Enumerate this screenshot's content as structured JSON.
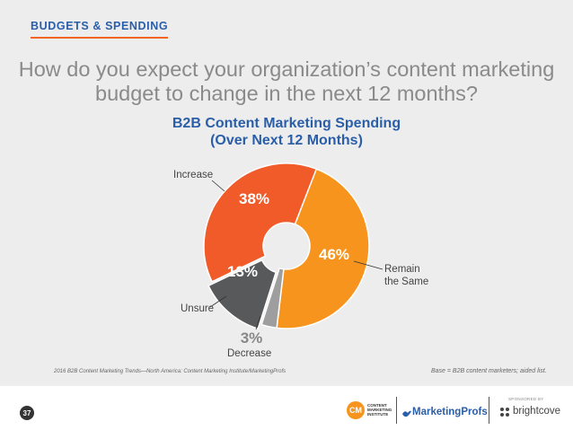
{
  "header": {
    "section_label": "BUDGETS & SPENDING",
    "question": "How do you expect your organization’s content marketing budget to change in the next 12 months?"
  },
  "chart_data": {
    "type": "pie",
    "title": "B2B Content Marketing Spending",
    "subtitle": "(Over Next 12 Months)",
    "donut": true,
    "categories": [
      "Increase",
      "Remain the Same",
      "Decrease",
      "Unsure"
    ],
    "values": [
      38,
      46,
      3,
      13
    ],
    "value_labels": [
      "38%",
      "46%",
      "3%",
      "13%"
    ],
    "category_labels": [
      "Increase",
      "Remain\nthe Same",
      "Decrease",
      "Unsure"
    ],
    "colors": [
      "#f15a29",
      "#f7941d",
      "#9e9e9e",
      "#58595b"
    ],
    "exploded": "Unsure"
  },
  "footnotes": {
    "source": "2016 B2B Content Marketing Trends—North America: Content Marketing Institute/MarketingProfs",
    "base": "Base = B2B content marketers; aided list."
  },
  "footer": {
    "page_number": "37",
    "cmi_logo": "CM",
    "cmi_text": "CONTENT\nMARKETING\nINSTITUTE",
    "marketingprofs": "MarketingProfs",
    "sponsored_by": "SPONSORED BY",
    "brightcove": "brightcove"
  },
  "icons": [
    "cmi-logo-icon",
    "marketingprofs-bird-icon",
    "brightcove-logo-icon"
  ]
}
